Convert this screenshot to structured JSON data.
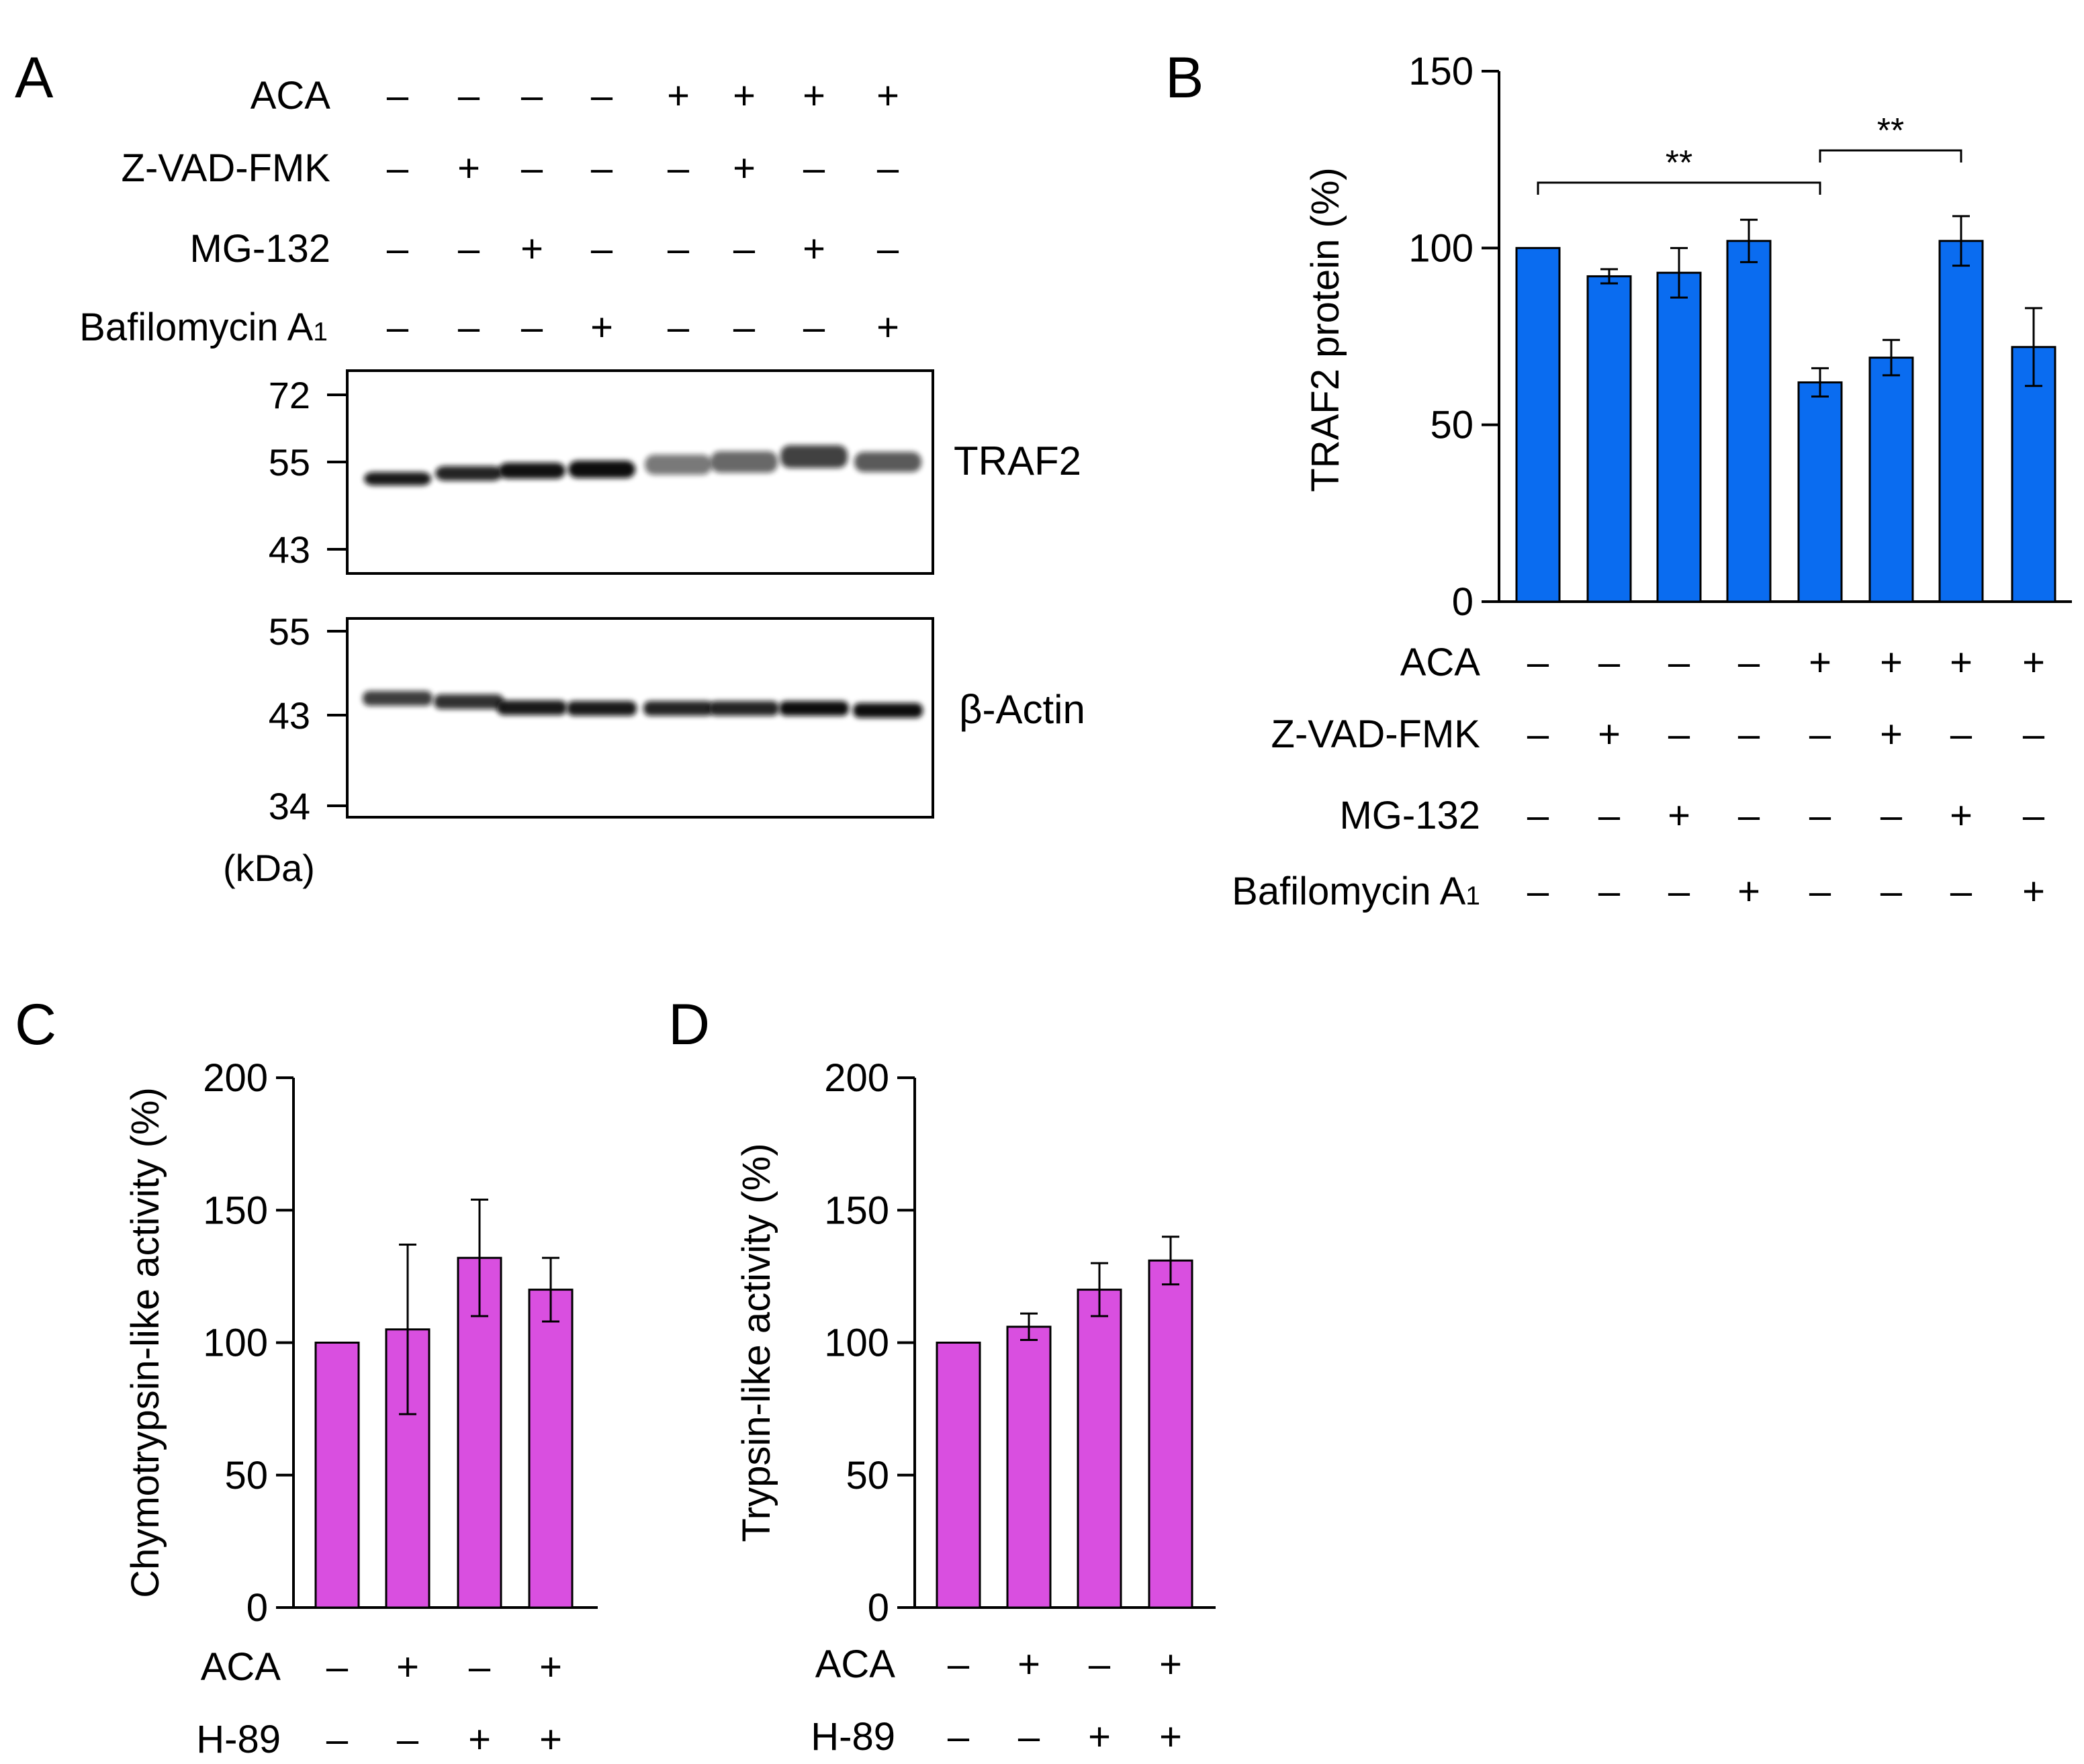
{
  "panels": {
    "A": {
      "panel_label": "A",
      "treatment_rows": [
        {
          "label": "ACA",
          "signs": [
            "–",
            "–",
            "–",
            "–",
            "+",
            "+",
            "+",
            "+"
          ]
        },
        {
          "label": "Z-VAD-FMK",
          "signs": [
            "–",
            "+",
            "–",
            "–",
            "–",
            "+",
            "–",
            "–"
          ]
        },
        {
          "label": "MG-132",
          "signs": [
            "–",
            "–",
            "+",
            "–",
            "–",
            "–",
            "+",
            "–"
          ]
        },
        {
          "label": "Bafilomycin A",
          "label_sub": "1",
          "signs": [
            "–",
            "–",
            "–",
            "+",
            "–",
            "–",
            "–",
            "+"
          ]
        }
      ],
      "blots": [
        {
          "name": "TRAF2",
          "markers": [
            "72",
            "55",
            "43"
          ]
        },
        {
          "name": "β-Actin",
          "markers": [
            "55",
            "43",
            "34"
          ]
        }
      ],
      "mw_unit": "(kDa)"
    },
    "B": {
      "panel_label": "B",
      "significance_label": "**"
    },
    "C": {
      "panel_label": "C"
    },
    "D": {
      "panel_label": "D"
    }
  },
  "colors": {
    "blue_bar": "#0a6cf0",
    "magenta_bar": "#d94fe0",
    "blot_band": "#111111"
  },
  "chart_data": [
    {
      "id": "B",
      "type": "bar",
      "ylabel": "TRAF2 protein (%)",
      "ylim": [
        0,
        150
      ],
      "yticks": [
        "0",
        "50",
        "100",
        "150"
      ],
      "values": [
        100,
        92,
        93,
        102,
        62,
        69,
        102,
        72
      ],
      "errors": [
        0,
        2,
        7,
        6,
        4,
        5,
        7,
        11
      ],
      "treatment_rows": [
        {
          "label": "ACA",
          "signs": [
            "–",
            "–",
            "–",
            "–",
            "+",
            "+",
            "+",
            "+"
          ]
        },
        {
          "label": "Z-VAD-FMK",
          "signs": [
            "–",
            "+",
            "–",
            "–",
            "–",
            "+",
            "–",
            "–"
          ]
        },
        {
          "label": "MG-132",
          "signs": [
            "–",
            "–",
            "+",
            "–",
            "–",
            "–",
            "+",
            "–"
          ]
        },
        {
          "label": "Bafilomycin A",
          "label_sub": "1",
          "signs": [
            "–",
            "–",
            "–",
            "+",
            "–",
            "–",
            "–",
            "+"
          ]
        }
      ],
      "significance": [
        {
          "from": 0,
          "to": 4,
          "label": "**"
        },
        {
          "from": 4,
          "to": 6,
          "label": "**"
        }
      ]
    },
    {
      "id": "C",
      "type": "bar",
      "ylabel": "Chymotrypsin-like activity (%)",
      "ylim": [
        0,
        200
      ],
      "yticks": [
        "0",
        "50",
        "100",
        "150",
        "200"
      ],
      "values": [
        100,
        105,
        132,
        120
      ],
      "errors": [
        0,
        32,
        22,
        12
      ],
      "treatment_rows": [
        {
          "label": "ACA",
          "signs": [
            "–",
            "+",
            "–",
            "+"
          ]
        },
        {
          "label": "H-89",
          "signs": [
            "–",
            "–",
            "+",
            "+"
          ]
        }
      ]
    },
    {
      "id": "D",
      "type": "bar",
      "ylabel": "Trypsin-like activity (%)",
      "ylim": [
        0,
        200
      ],
      "yticks": [
        "0",
        "50",
        "100",
        "150",
        "200"
      ],
      "values": [
        100,
        106,
        120,
        131
      ],
      "errors": [
        0,
        5,
        10,
        9
      ],
      "treatment_rows": [
        {
          "label": "ACA",
          "signs": [
            "–",
            "+",
            "–",
            "+"
          ]
        },
        {
          "label": "H-89",
          "signs": [
            "–",
            "–",
            "+",
            "+"
          ]
        }
      ]
    }
  ]
}
